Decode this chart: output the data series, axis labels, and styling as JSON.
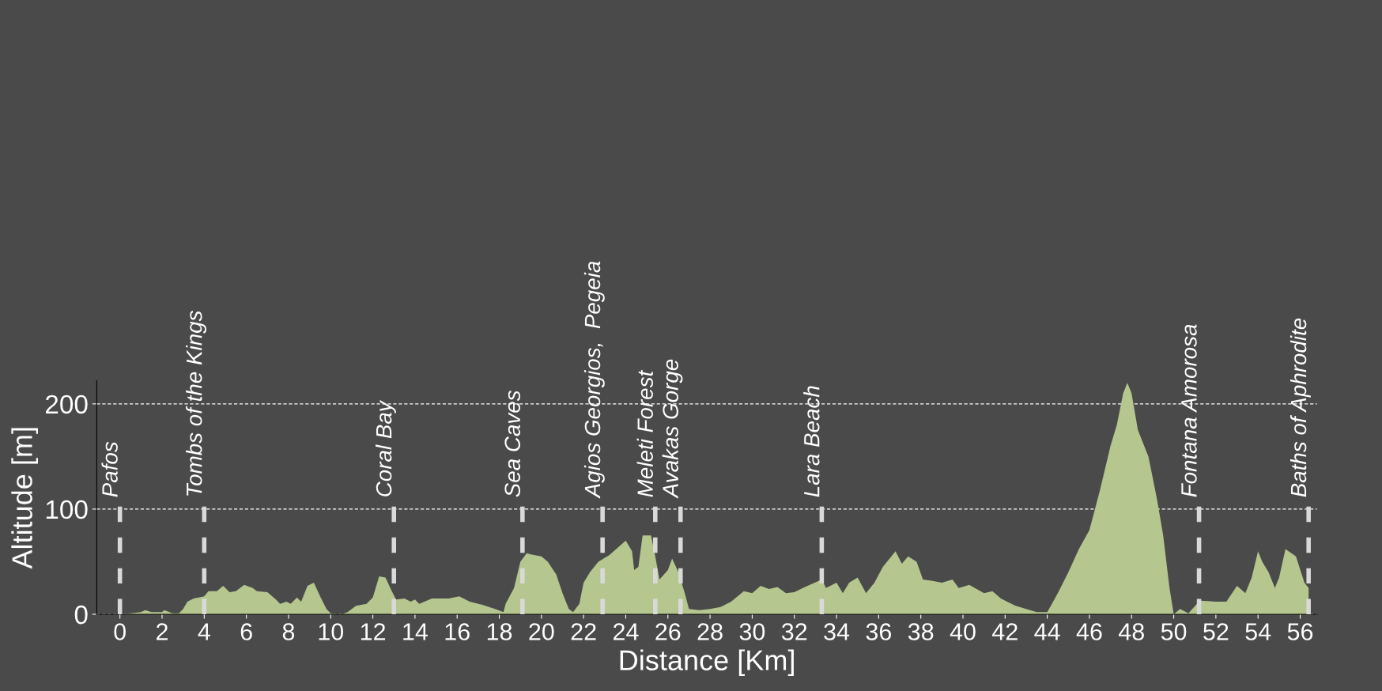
{
  "chart_data": {
    "type": "area",
    "xlabel": "Distance [Km]",
    "ylabel": "Altitude [m]",
    "xlim": [
      -1.1,
      56.8
    ],
    "ylim": [
      0,
      222
    ],
    "xticks": [
      0,
      2,
      4,
      6,
      8,
      10,
      12,
      14,
      16,
      18,
      20,
      22,
      24,
      26,
      28,
      30,
      32,
      34,
      36,
      38,
      40,
      42,
      44,
      46,
      48,
      50,
      52,
      54,
      56
    ],
    "yticks": [
      0,
      100,
      200
    ],
    "grid": "y",
    "series": [
      {
        "color": "#b5c78e",
        "x": [
          0,
          0.5,
          1,
          1.2,
          1.5,
          2,
          2.1,
          2.5,
          2.8,
          3.0,
          3.2,
          3.5,
          4.0,
          4.2,
          4.6,
          4.9,
          5.2,
          5.5,
          5.9,
          6.3,
          6.5,
          7.0,
          7.4,
          7.6,
          7.9,
          8.1,
          8.4,
          8.6,
          8.9,
          9.2,
          9.5,
          9.8,
          10.0,
          10.5,
          10.8,
          11.2,
          11.7,
          12.0,
          12.3,
          12.6,
          12.9,
          13.1,
          13.5,
          13.8,
          14.0,
          14.2,
          14.8,
          15.6,
          16.1,
          16.6,
          17.2,
          17.8,
          18.2,
          18.3,
          18.7,
          19.0,
          19.3,
          19.5,
          20.0,
          20.3,
          20.7,
          21.0,
          21.3,
          21.5,
          21.8,
          22.0,
          22.3,
          22.7,
          23.2,
          23.6,
          24.0,
          24.3,
          24.4,
          24.6,
          24.8,
          25.2,
          25.4,
          25.6,
          26.0,
          26.2,
          26.5,
          26.8,
          27.0,
          27.5,
          28.0,
          28.5,
          29.0,
          29.6,
          30.0,
          30.4,
          30.8,
          31.2,
          31.6,
          32.0,
          32.5,
          33.3,
          33.5,
          34.0,
          34.3,
          34.6,
          35.0,
          35.4,
          35.8,
          36.2,
          36.8,
          37.1,
          37.4,
          37.8,
          38.1,
          38.5,
          39.0,
          39.5,
          39.8,
          40.3,
          41.0,
          41.4,
          41.8,
          42.0,
          42.5,
          43.0,
          43.5,
          44.0,
          44.5,
          45.0,
          45.5,
          46.0,
          46.5,
          47.0,
          47.3,
          47.6,
          47.8,
          48.0,
          48.3,
          48.8,
          49.2,
          49.5,
          49.8,
          50.0,
          50.3,
          50.7,
          51.1,
          51.3,
          52.0,
          52.5,
          53.0,
          53.4,
          53.7,
          54.0,
          54.2,
          54.5,
          54.8,
          55.0,
          55.3,
          55.8,
          56.2,
          56.4
        ],
        "values": [
          0,
          1,
          2,
          4,
          2,
          2,
          4,
          1,
          1,
          5,
          12,
          15,
          17,
          22,
          22,
          27,
          21,
          22,
          28,
          25,
          22,
          21,
          14,
          10,
          12,
          10,
          16,
          12,
          27,
          30,
          17,
          5,
          1,
          0,
          2,
          8,
          10,
          16,
          36,
          35,
          22,
          14,
          15,
          12,
          14,
          10,
          15,
          15,
          17,
          12,
          9,
          5,
          2,
          10,
          25,
          50,
          58,
          57,
          55,
          50,
          38,
          20,
          5,
          2,
          10,
          30,
          40,
          50,
          56,
          63,
          70,
          60,
          42,
          45,
          75,
          75,
          55,
          33,
          42,
          53,
          40,
          20,
          5,
          4,
          5,
          7,
          12,
          22,
          20,
          27,
          24,
          26,
          20,
          21,
          26,
          33,
          25,
          30,
          20,
          30,
          35,
          20,
          30,
          45,
          60,
          48,
          55,
          50,
          33,
          32,
          30,
          33,
          25,
          28,
          20,
          22,
          15,
          13,
          8,
          5,
          2,
          2,
          20,
          40,
          62,
          80,
          118,
          160,
          180,
          210,
          220,
          210,
          175,
          150,
          110,
          75,
          25,
          0,
          5,
          1,
          10,
          13,
          12,
          12,
          27,
          20,
          35,
          60,
          50,
          40,
          25,
          35,
          62,
          55,
          30,
          25
        ]
      }
    ],
    "ref_lines": [
      {
        "axis": "x",
        "value": 0.0,
        "label": "Pafos",
        "color": "#d9d9d9",
        "line_style": "dashed"
      },
      {
        "axis": "x",
        "value": 4.0,
        "label": "Tombs of the Kings",
        "color": "#d9d9d9",
        "line_style": "dashed"
      },
      {
        "axis": "x",
        "value": 13.0,
        "label": "Coral Bay",
        "color": "#d9d9d9",
        "line_style": "dashed"
      },
      {
        "axis": "x",
        "value": 19.1,
        "label": "Sea Caves",
        "color": "#d9d9d9",
        "line_style": "dashed"
      },
      {
        "axis": "x",
        "value": 22.9,
        "label": "Agios Georgios,  Pegeia",
        "color": "#d9d9d9",
        "line_style": "dashed"
      },
      {
        "axis": "x",
        "value": 25.4,
        "label": "Meleti Forest",
        "color": "#d9d9d9",
        "line_style": "dashed"
      },
      {
        "axis": "x",
        "value": 26.6,
        "label": "Avakas Gorge",
        "color": "#d9d9d9",
        "line_style": "dashed"
      },
      {
        "axis": "x",
        "value": 33.3,
        "label": "Lara Beach",
        "color": "#d9d9d9",
        "line_style": "dashed"
      },
      {
        "axis": "x",
        "value": 51.2,
        "label": "Fontana Amorosa",
        "color": "#d9d9d9",
        "line_style": "dashed"
      },
      {
        "axis": "x",
        "value": 56.4,
        "label": "Baths of Aphrodite",
        "color": "#d9d9d9",
        "line_style": "dashed"
      }
    ]
  }
}
